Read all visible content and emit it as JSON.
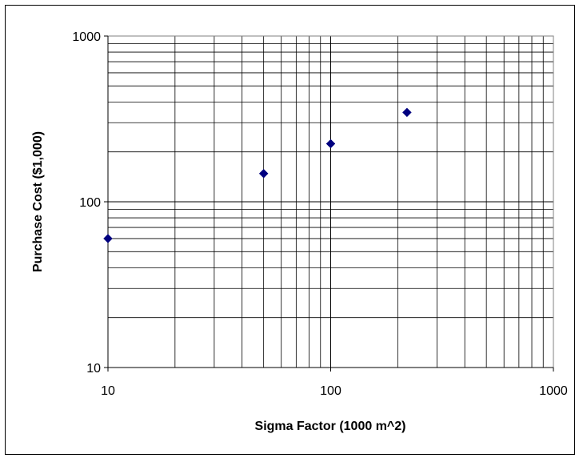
{
  "chart_data": {
    "type": "scatter",
    "title": "",
    "xlabel": "Sigma Factor (1000 m^2)",
    "ylabel": "Purchase Cost ($1,000)",
    "xscale": "log",
    "yscale": "log",
    "xlim": [
      10,
      1000
    ],
    "ylim": [
      10,
      1000
    ],
    "x_ticks": [
      "10",
      "100",
      "1000"
    ],
    "y_ticks": [
      "10",
      "100",
      "1000"
    ],
    "grid": true,
    "legend": "none",
    "marker": "diamond",
    "color": "#000080",
    "series": [
      {
        "x": [
          10,
          50,
          100,
          220
        ],
        "y": [
          60,
          148,
          224,
          346
        ]
      }
    ]
  }
}
